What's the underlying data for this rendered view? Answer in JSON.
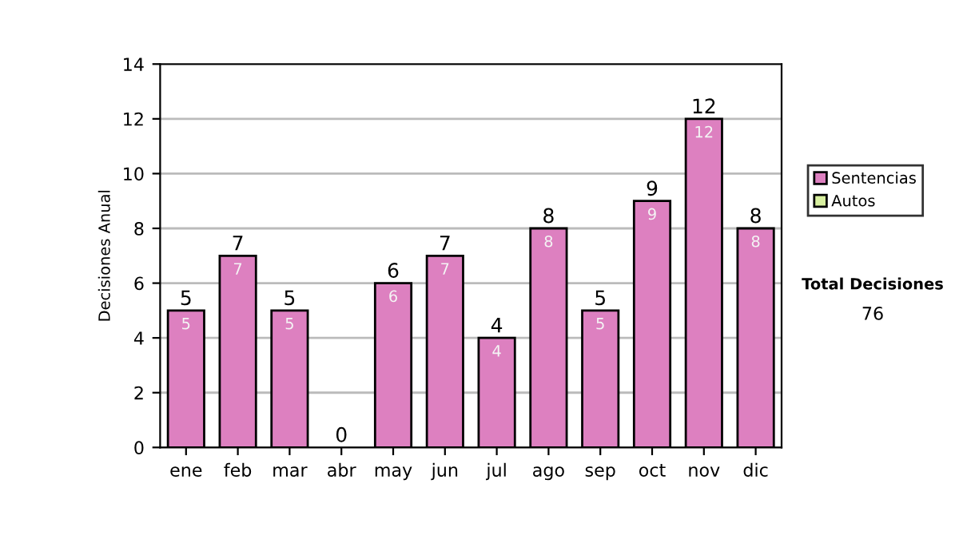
{
  "chart_data": {
    "type": "bar",
    "ylabel": "Decisiones Anual",
    "categories": [
      "ene",
      "feb",
      "mar",
      "abr",
      "may",
      "jun",
      "jul",
      "ago",
      "sep",
      "oct",
      "nov",
      "dic"
    ],
    "series": [
      {
        "name": "Sentencias",
        "color": "#dd80c0",
        "values": [
          5,
          7,
          5,
          0,
          6,
          7,
          4,
          8,
          5,
          9,
          12,
          8
        ],
        "value_labels": [
          "5",
          "7",
          "5",
          null,
          "6",
          "7",
          "4",
          "8",
          "5",
          "9",
          "12",
          "8"
        ]
      },
      {
        "name": "Autos",
        "color": "#d8f0a0",
        "values": [
          0,
          0,
          0,
          0,
          0,
          0,
          0,
          0,
          0,
          0,
          0,
          0
        ]
      }
    ],
    "totals": [
      "5",
      "7",
      "5",
      "0",
      "6",
      "7",
      "4",
      "8",
      "5",
      "9",
      "12",
      "8"
    ],
    "ylim": [
      0,
      14
    ],
    "yticks": [
      0,
      2,
      4,
      6,
      8,
      10,
      12,
      14
    ],
    "grid": "y",
    "legend": "right",
    "annotations": [
      "Total Decisiones",
      "76"
    ]
  }
}
